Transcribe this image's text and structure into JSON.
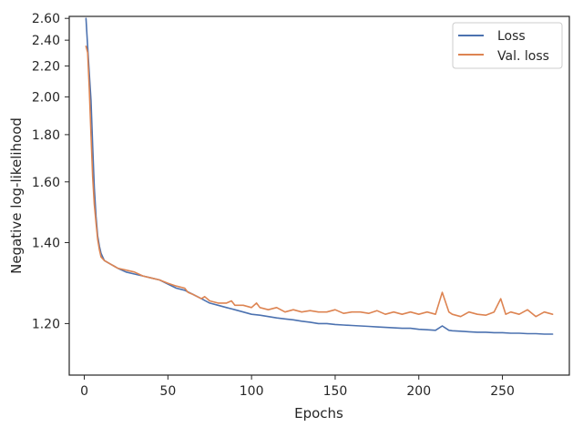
{
  "chart_data": {
    "type": "line",
    "title": "",
    "xlabel": "Epochs",
    "ylabel": "Negative log-likelihood",
    "xlim": [
      -9,
      290
    ],
    "ylim": [
      1.1,
      2.62
    ],
    "y_scale": "reciprocal",
    "grid": false,
    "legend_position": "top-right",
    "x_ticks": [
      0,
      50,
      100,
      150,
      200,
      250
    ],
    "x_tick_labels": [
      "0",
      "50",
      "100",
      "150",
      "200",
      "250"
    ],
    "y_ticks": [
      1.2,
      1.4,
      1.6,
      1.8,
      2.0,
      2.2,
      2.4,
      2.6
    ],
    "y_tick_labels": [
      "1.20",
      "1.40",
      "1.60",
      "1.80",
      "2.00",
      "2.20",
      "2.40",
      "2.60"
    ],
    "colors": {
      "loss": "#4c72b0",
      "val_loss": "#dd8452",
      "axis": "#262626"
    },
    "series": [
      {
        "name": "Loss",
        "color": "#4c72b0",
        "x": [
          1,
          2,
          3,
          4,
          5,
          6,
          7,
          8,
          9,
          10,
          11,
          12,
          14,
          16,
          18,
          20,
          25,
          30,
          35,
          40,
          45,
          50,
          55,
          60,
          65,
          70,
          75,
          80,
          85,
          90,
          95,
          100,
          105,
          110,
          115,
          120,
          125,
          130,
          135,
          140,
          145,
          150,
          155,
          160,
          165,
          170,
          175,
          180,
          185,
          190,
          195,
          200,
          205,
          210,
          214,
          218,
          220,
          225,
          230,
          235,
          240,
          245,
          250,
          255,
          260,
          265,
          270,
          275,
          280
        ],
        "y": [
          2.6,
          2.35,
          2.15,
          1.98,
          1.75,
          1.58,
          1.48,
          1.42,
          1.39,
          1.37,
          1.36,
          1.35,
          1.345,
          1.34,
          1.335,
          1.33,
          1.32,
          1.315,
          1.31,
          1.305,
          1.3,
          1.29,
          1.28,
          1.275,
          1.265,
          1.255,
          1.245,
          1.24,
          1.235,
          1.23,
          1.225,
          1.22,
          1.218,
          1.215,
          1.212,
          1.21,
          1.208,
          1.205,
          1.203,
          1.2,
          1.2,
          1.198,
          1.197,
          1.196,
          1.195,
          1.194,
          1.193,
          1.192,
          1.191,
          1.19,
          1.19,
          1.188,
          1.187,
          1.186,
          1.195,
          1.186,
          1.185,
          1.184,
          1.183,
          1.182,
          1.182,
          1.181,
          1.181,
          1.18,
          1.18,
          1.179,
          1.179,
          1.178,
          1.178
        ]
      },
      {
        "name": "Val. loss",
        "color": "#dd8452",
        "x": [
          1,
          2,
          3,
          4,
          5,
          6,
          7,
          8,
          9,
          10,
          11,
          12,
          14,
          16,
          18,
          20,
          25,
          30,
          35,
          40,
          45,
          50,
          55,
          60,
          62,
          65,
          70,
          72,
          75,
          80,
          85,
          88,
          90,
          95,
          100,
          103,
          105,
          110,
          115,
          120,
          125,
          130,
          135,
          140,
          145,
          150,
          155,
          160,
          165,
          170,
          175,
          180,
          185,
          190,
          195,
          200,
          205,
          210,
          214,
          218,
          220,
          225,
          230,
          235,
          240,
          245,
          249,
          252,
          255,
          260,
          265,
          270,
          275,
          280
        ],
        "y": [
          2.35,
          2.3,
          2.05,
          1.8,
          1.62,
          1.52,
          1.46,
          1.41,
          1.38,
          1.36,
          1.355,
          1.35,
          1.345,
          1.34,
          1.335,
          1.33,
          1.325,
          1.32,
          1.31,
          1.305,
          1.3,
          1.292,
          1.285,
          1.28,
          1.27,
          1.265,
          1.255,
          1.26,
          1.25,
          1.245,
          1.245,
          1.25,
          1.24,
          1.24,
          1.235,
          1.245,
          1.235,
          1.23,
          1.235,
          1.225,
          1.23,
          1.225,
          1.228,
          1.225,
          1.225,
          1.23,
          1.222,
          1.225,
          1.225,
          1.222,
          1.228,
          1.22,
          1.225,
          1.22,
          1.225,
          1.22,
          1.225,
          1.22,
          1.27,
          1.225,
          1.22,
          1.215,
          1.225,
          1.22,
          1.218,
          1.225,
          1.255,
          1.22,
          1.225,
          1.22,
          1.23,
          1.215,
          1.225,
          1.22
        ]
      }
    ]
  }
}
